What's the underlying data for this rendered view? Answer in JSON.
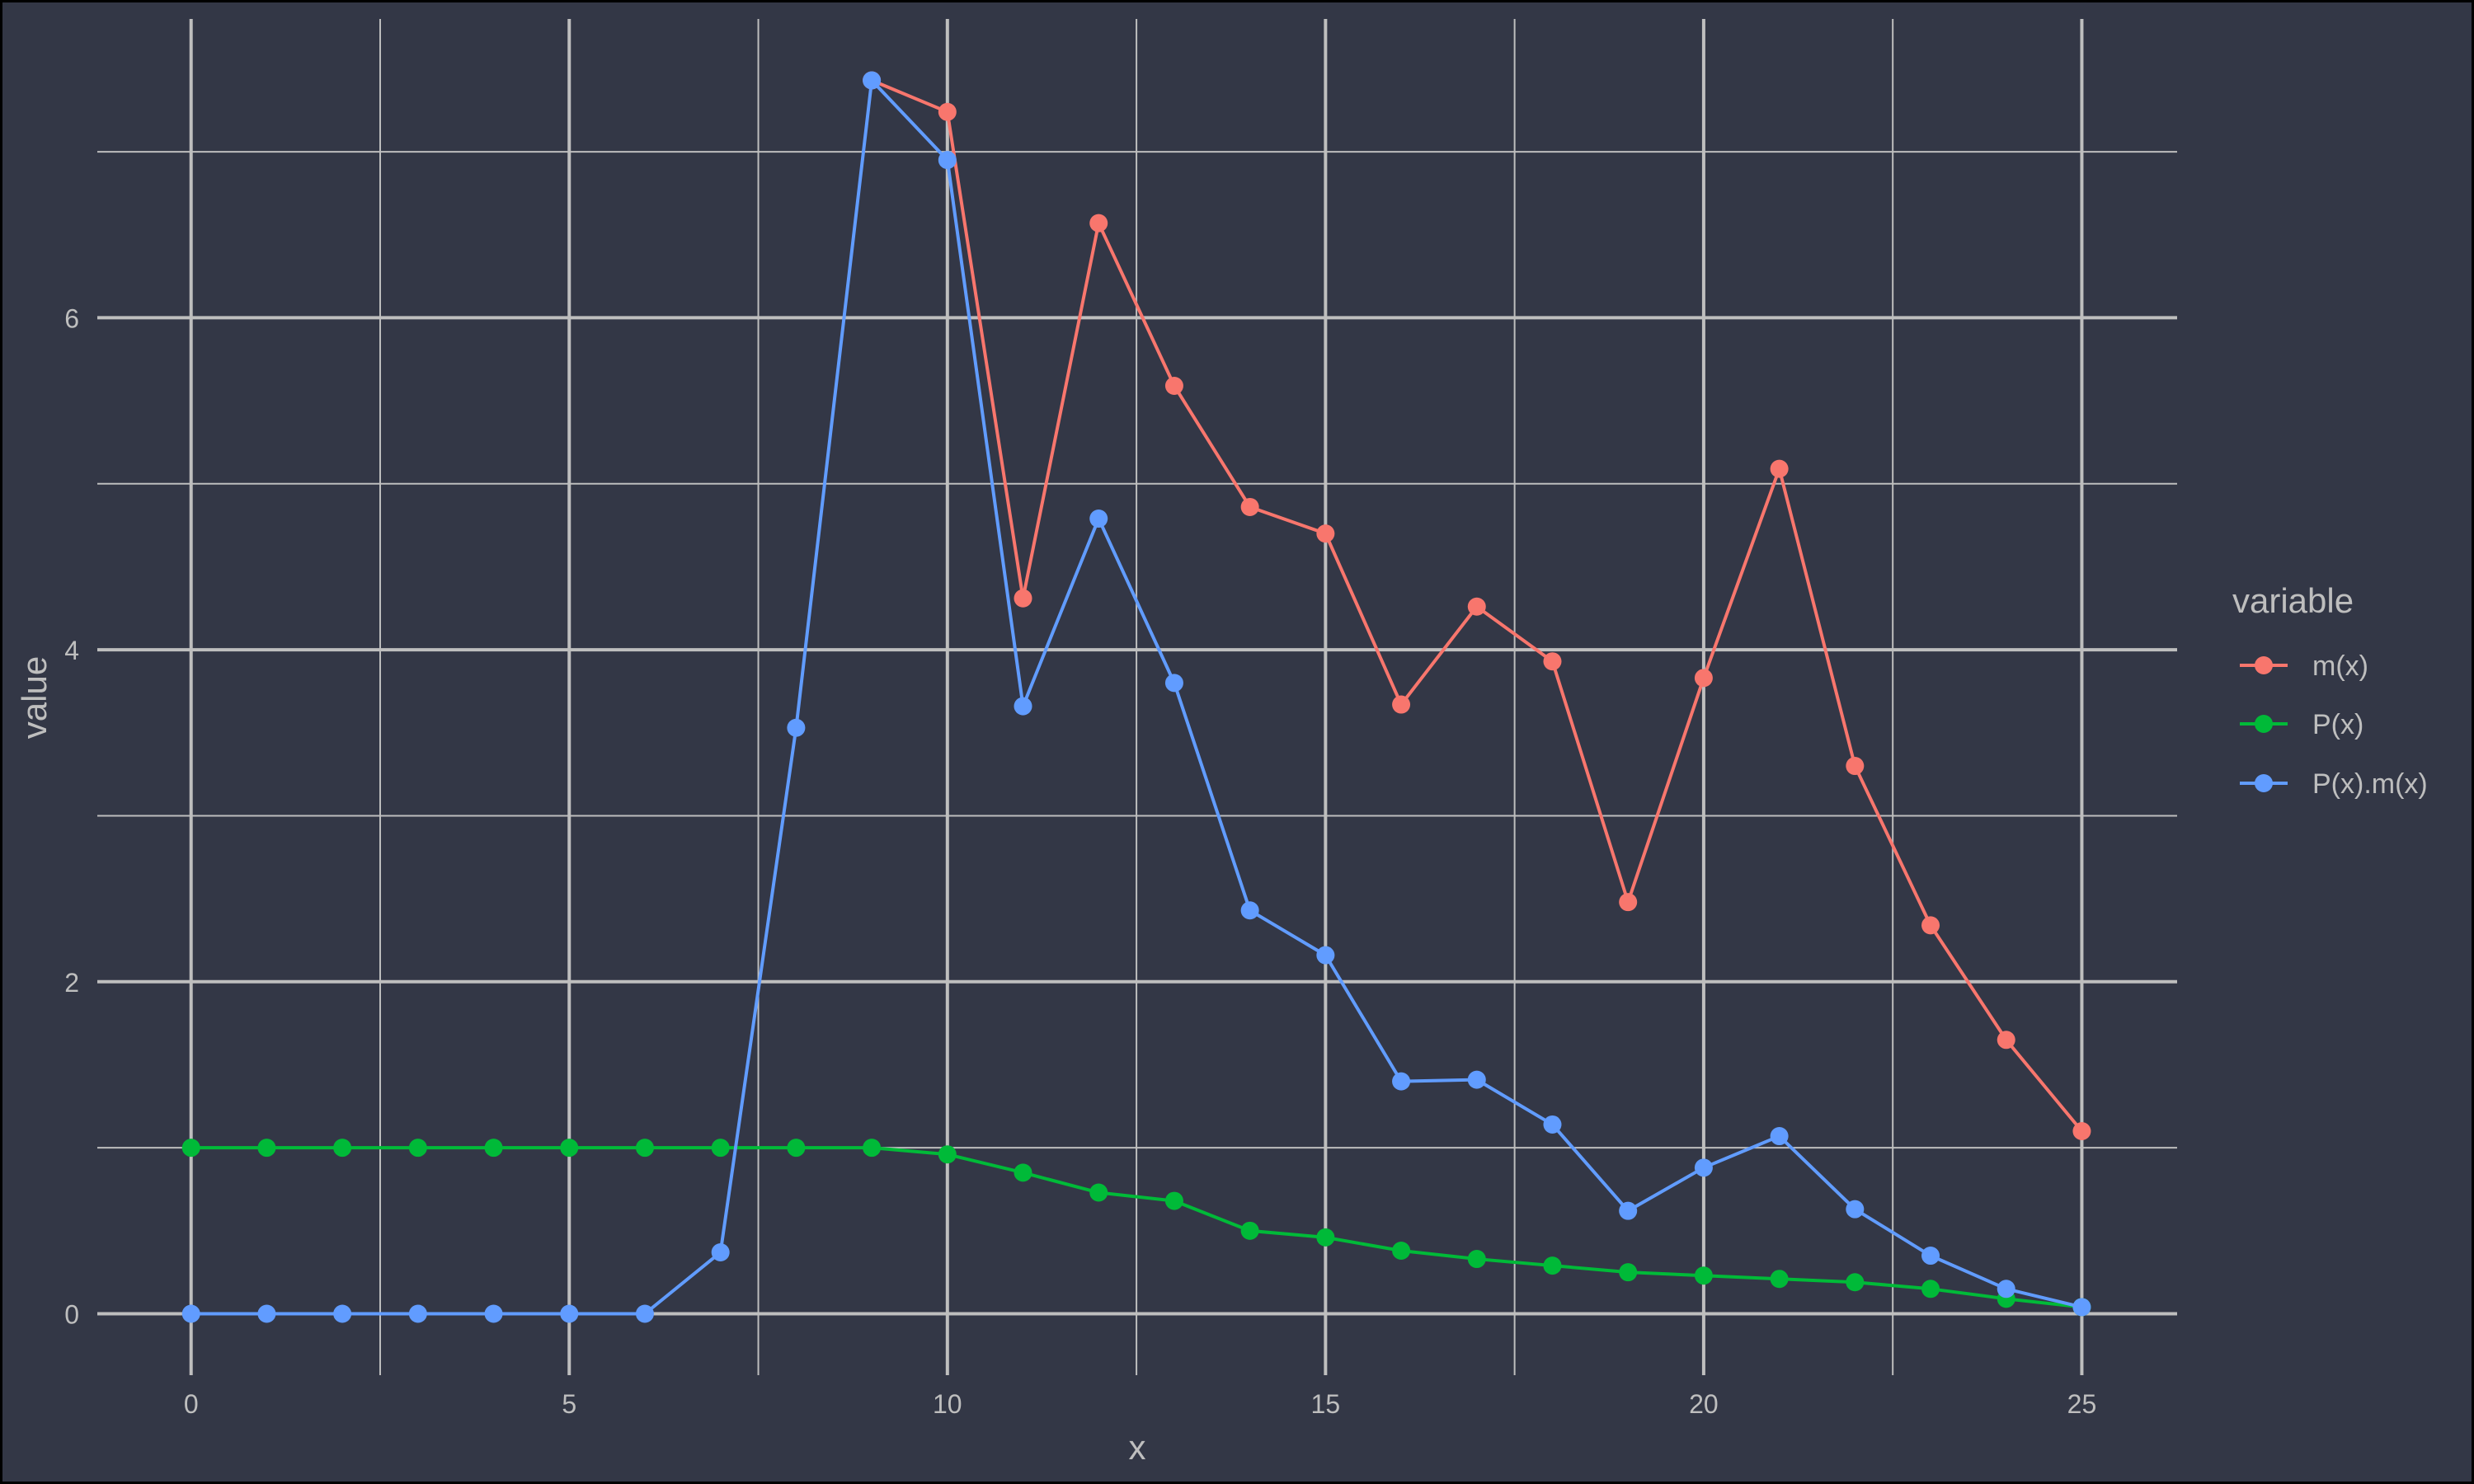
{
  "theme": {
    "background": "#333746",
    "border": "#000000",
    "grid_major": "#bebebe",
    "grid_minor": "#bebebe",
    "text": "#bebebe"
  },
  "chart_data": {
    "type": "line",
    "title": "",
    "xlabel": "x",
    "ylabel": "value",
    "xlim": [
      -1.24,
      26.26
    ],
    "ylim": [
      -0.37,
      7.8
    ],
    "x_ticks": [
      0,
      5,
      10,
      15,
      20,
      25
    ],
    "x_tick_labels": [
      "0",
      "5",
      "10",
      "15",
      "20",
      "25"
    ],
    "x_minor": [
      2.5,
      7.5,
      12.5,
      17.5,
      22.5
    ],
    "y_ticks": [
      0,
      2,
      4,
      6
    ],
    "y_tick_labels": [
      "0",
      "2",
      "4",
      "6"
    ],
    "y_minor": [
      1,
      3,
      5,
      7
    ],
    "grid": true,
    "markers": true,
    "legend": {
      "title": "variable",
      "position": "right"
    },
    "x": [
      0,
      1,
      2,
      3,
      4,
      5,
      6,
      7,
      8,
      9,
      10,
      11,
      12,
      13,
      14,
      15,
      16,
      17,
      18,
      19,
      20,
      21,
      22,
      23,
      24,
      25
    ],
    "series": [
      {
        "name": "m(x)",
        "color": "#F8766D",
        "values": [
          null,
          null,
          null,
          null,
          null,
          null,
          null,
          null,
          null,
          7.43,
          7.24,
          4.31,
          6.57,
          5.59,
          4.86,
          4.7,
          3.67,
          4.26,
          3.93,
          2.48,
          3.83,
          5.09,
          3.3,
          2.34,
          1.65,
          1.1
        ]
      },
      {
        "name": "P(x)",
        "color": "#00BA38",
        "values": [
          1.0,
          1.0,
          1.0,
          1.0,
          1.0,
          1.0,
          1.0,
          1.0,
          1.0,
          1.0,
          0.96,
          0.85,
          0.73,
          0.68,
          0.5,
          0.46,
          0.38,
          0.33,
          0.29,
          0.25,
          0.23,
          0.21,
          0.19,
          0.15,
          0.09,
          0.04
        ]
      },
      {
        "name": "P(x).m(x)",
        "color": "#619CFF",
        "values": [
          0,
          0,
          0,
          0,
          0,
          0,
          0,
          0.37,
          3.53,
          7.43,
          6.95,
          3.66,
          4.79,
          3.8,
          2.43,
          2.16,
          1.4,
          1.41,
          1.14,
          0.62,
          0.88,
          1.07,
          0.63,
          0.35,
          0.15,
          0.04
        ]
      }
    ]
  }
}
